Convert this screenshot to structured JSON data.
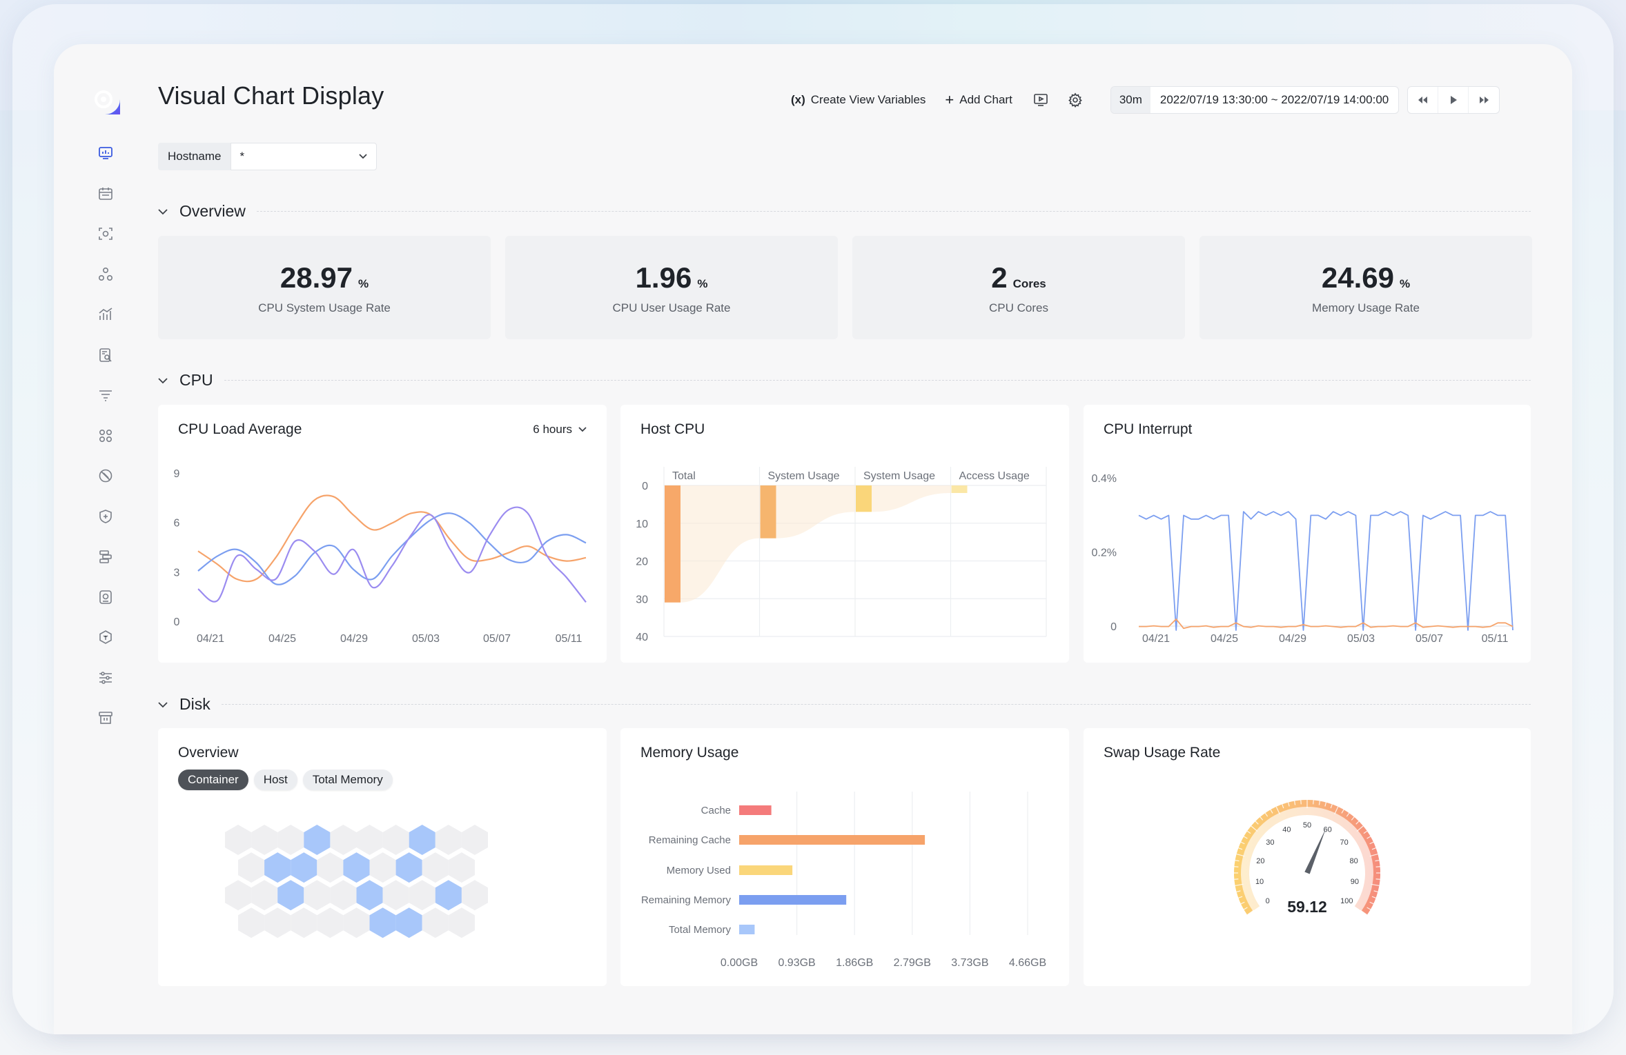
{
  "app": {
    "title": "Visual Chart Display"
  },
  "sidebar": {
    "items": [
      {
        "icon": "dashboard-icon",
        "active": true
      },
      {
        "icon": "calendar-icon"
      },
      {
        "icon": "scan-icon"
      },
      {
        "icon": "cluster-icon"
      },
      {
        "icon": "bar-chart-icon"
      },
      {
        "icon": "log-search-icon"
      },
      {
        "icon": "filter-list-icon"
      },
      {
        "icon": "apps-icon"
      },
      {
        "icon": "disabled-circle-icon"
      },
      {
        "icon": "shield-plus-icon"
      },
      {
        "icon": "server-stack-icon"
      },
      {
        "icon": "camera-icon"
      },
      {
        "icon": "hexagon-icon"
      },
      {
        "icon": "sliders-icon"
      },
      {
        "icon": "archive-icon"
      }
    ]
  },
  "header": {
    "create_variables_icon": "(x)",
    "create_variables_label": "Create View Variables",
    "add_chart_icon": "+",
    "add_chart_label": "Add Chart",
    "time_preset": "30m",
    "time_range": "2022/07/19 13:30:00 ~ 2022/07/19 14:00:00"
  },
  "filter": {
    "label": "Hostname",
    "value": "*"
  },
  "sections": {
    "overview": "Overview",
    "cpu": "CPU",
    "disk": "Disk"
  },
  "stats": [
    {
      "value": "28.97",
      "unit": "%",
      "label": "CPU System Usage Rate"
    },
    {
      "value": "1.96",
      "unit": "%",
      "label": "CPU User Usage Rate"
    },
    {
      "value": "2",
      "unit": "Cores",
      "label": "CPU Cores"
    },
    {
      "value": "24.69",
      "unit": "%",
      "label": "Memory Usage Rate"
    }
  ],
  "cards": {
    "load_avg": {
      "title": "CPU Load Average",
      "range": "6 hours"
    },
    "host_cpu": {
      "title": "Host CPU"
    },
    "cpu_interrupt": {
      "title": "CPU Interrupt"
    },
    "disk_overview": {
      "title": "Overview",
      "tags": [
        "Container",
        "Host",
        "Total Memory"
      ]
    },
    "memory_usage": {
      "title": "Memory Usage"
    },
    "swap": {
      "title": "Swap Usage Rate"
    }
  },
  "colors": {
    "blue": "#7b9ef0",
    "purple": "#9b8cf0",
    "orange": "#f6a36a",
    "orange_bar": "#f7a869",
    "yellow": "#fad67a",
    "red": "#f47b7b",
    "light_blue": "#a8c7fa"
  },
  "chart_data": [
    {
      "type": "line",
      "title": "CPU Load Average",
      "x_ticks": [
        "04/21",
        "04/25",
        "04/29",
        "05/03",
        "05/07",
        "05/11"
      ],
      "y_ticks": [
        "0",
        "3",
        "6",
        "9"
      ],
      "ylim": [
        0,
        9
      ],
      "x": [
        0,
        1,
        2,
        3,
        4,
        5,
        6,
        7,
        8,
        9,
        10,
        11,
        12,
        13,
        14,
        15,
        16,
        17,
        18,
        19,
        20
      ],
      "series": [
        {
          "color": "#f6a36a",
          "values": [
            4.3,
            3.5,
            2.6,
            2.6,
            3.9,
            5.8,
            7.4,
            7.6,
            6.5,
            5.6,
            6.0,
            6.6,
            6.5,
            5.0,
            3.8,
            3.8,
            4.2,
            4.6,
            4.0,
            3.7,
            3.9
          ]
        },
        {
          "color": "#7b9ef0",
          "values": [
            3.1,
            4.0,
            4.4,
            3.6,
            2.3,
            2.8,
            4.2,
            4.6,
            3.2,
            2.6,
            4.0,
            5.2,
            6.2,
            6.6,
            6.0,
            4.8,
            3.8,
            3.7,
            4.9,
            5.3,
            4.8
          ]
        },
        {
          "color": "#9b8cf0",
          "values": [
            2.0,
            1.3,
            4.0,
            3.2,
            2.6,
            4.9,
            4.3,
            2.9,
            4.4,
            2.1,
            3.4,
            5.3,
            6.5,
            4.4,
            3.0,
            5.2,
            6.8,
            6.6,
            4.0,
            2.7,
            1.2
          ]
        }
      ]
    },
    {
      "type": "bar",
      "title": "Host CPU",
      "categories": [
        "Total",
        "System Usage",
        "System Usage",
        "Access Usage"
      ],
      "y_ticks": [
        "0",
        "10",
        "20",
        "30",
        "40"
      ],
      "ylim": [
        0,
        40
      ],
      "ranges": [
        [
          0,
          31
        ],
        [
          0,
          14
        ],
        [
          0,
          7
        ],
        [
          0,
          2
        ]
      ],
      "colors": [
        "#f7a869",
        "#f6b56e",
        "#fad67a",
        "#fbe7a6"
      ]
    },
    {
      "type": "line",
      "title": "CPU Interrupt",
      "x_ticks": [
        "04/21",
        "04/25",
        "04/29",
        "05/03",
        "05/07",
        "05/11"
      ],
      "y_ticks": [
        "0",
        "0.2%",
        "0.4%"
      ],
      "ylim": [
        0,
        0.4
      ],
      "series": [
        {
          "color": "#7b9ef0",
          "values": [
            0.31,
            0.3,
            0.31,
            0.3,
            0.31,
            0.0,
            0.31,
            0.3,
            0.3,
            0.31,
            0.3,
            0.31,
            0.31,
            0.0,
            0.32,
            0.3,
            0.32,
            0.31,
            0.32,
            0.31,
            0.32,
            0.3,
            0.0,
            0.31,
            0.31,
            0.3,
            0.32,
            0.31,
            0.32,
            0.31,
            0.0,
            0.31,
            0.31,
            0.32,
            0.31,
            0.32,
            0.31,
            0.0,
            0.31,
            0.3,
            0.31,
            0.32,
            0.31,
            0.31,
            0.0,
            0.31,
            0.31,
            0.32,
            0.31,
            0.31,
            0.0
          ]
        },
        {
          "color": "#f6a36a",
          "values": [
            0.01,
            0.01,
            0.012,
            0.01,
            0.01,
            0.03,
            0.005,
            0.01,
            0.01,
            0.012,
            0.008,
            0.01,
            0.01,
            0.02,
            0.01,
            0.008,
            0.012,
            0.01,
            0.01,
            0.008,
            0.01,
            0.01,
            0.015,
            0.01,
            0.01,
            0.012,
            0.01,
            0.008,
            0.01,
            0.01,
            0.02,
            0.008,
            0.01,
            0.01,
            0.012,
            0.01,
            0.01,
            0.02,
            0.008,
            0.01,
            0.012,
            0.01,
            0.008,
            0.01,
            0.01,
            0.01,
            0.008,
            0.01,
            0.02,
            0.02,
            0.01
          ]
        }
      ]
    },
    {
      "type": "heatmap",
      "title": "Overview",
      "rows": [
        [
          0,
          0,
          0,
          1,
          0,
          0,
          0,
          1,
          0,
          0
        ],
        [
          0,
          1,
          1,
          0,
          1,
          0,
          1,
          0,
          0
        ],
        [
          0,
          0,
          1,
          0,
          0,
          1,
          0,
          0,
          1,
          0
        ],
        [
          0,
          0,
          0,
          0,
          0,
          1,
          1,
          0,
          0
        ]
      ]
    },
    {
      "type": "bar",
      "orientation": "horizontal",
      "title": "Memory Usage",
      "categories": [
        "Cache",
        "Remaining Cache",
        "Memory Used",
        "Remaining Memory",
        "Total Memory"
      ],
      "values": [
        0.52,
        3.0,
        0.86,
        1.73,
        0.25
      ],
      "colors": [
        "#f47b7b",
        "#f6a36a",
        "#fad67a",
        "#7b9ef0",
        "#a8c7fa"
      ],
      "x_ticks": [
        "0.00GB",
        "0.93GB",
        "1.86GB",
        "2.79GB",
        "3.73GB",
        "4.66GB"
      ],
      "xlim": [
        0,
        4.66
      ]
    },
    {
      "type": "gauge",
      "title": "Swap Usage Rate",
      "value": 59.12,
      "value_label": "59.12",
      "min": 0,
      "max": 100,
      "ticks": [
        "0",
        "10",
        "20",
        "30",
        "40",
        "50",
        "60",
        "70",
        "80",
        "90",
        "100"
      ]
    }
  ]
}
